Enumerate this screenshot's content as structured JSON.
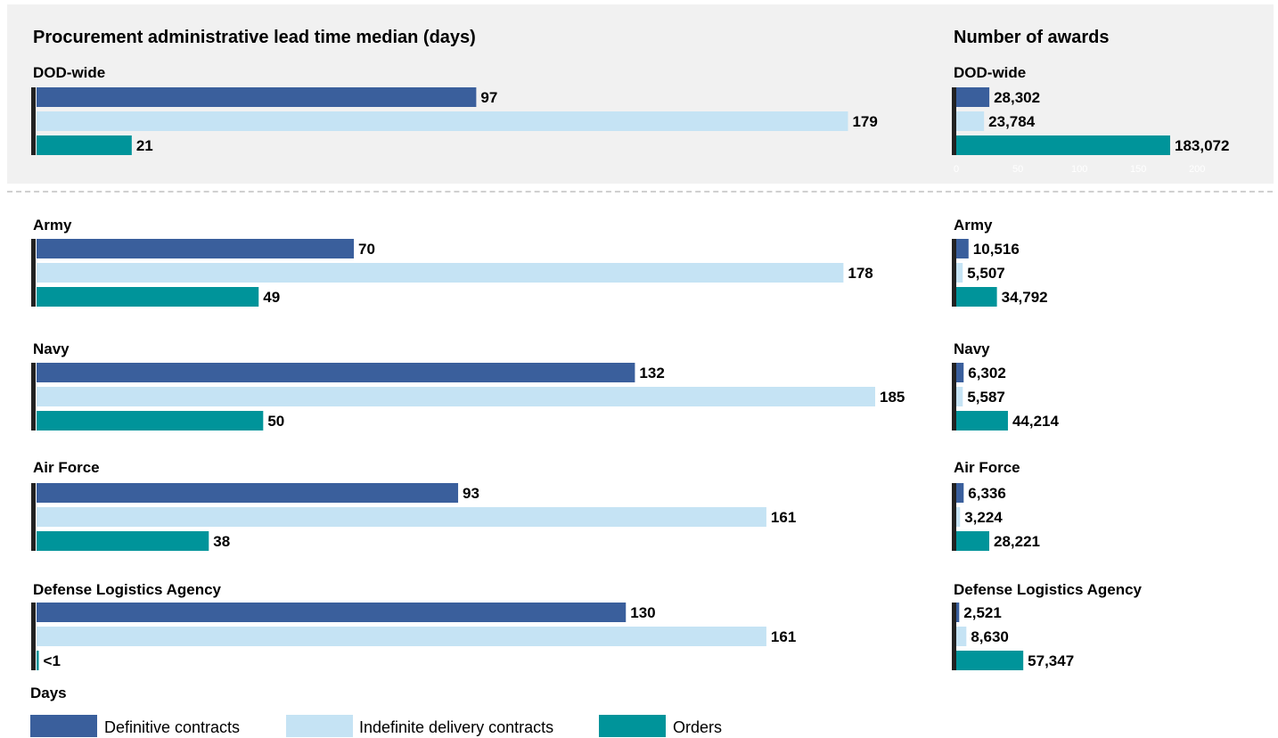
{
  "colors": {
    "definitive": "#3a5f9c",
    "indefinite": "#c5e3f4",
    "orders": "#00949a",
    "axis": "#222222",
    "panel": "#f1f1f1"
  },
  "chart_data": [
    {
      "type": "bar",
      "orientation": "horizontal",
      "title": "Procurement administrative lead time median (days)",
      "xlabel": "Days",
      "categories": [
        "DOD-wide",
        "Army",
        "Navy",
        "Air Force",
        "Defense Logistics Agency"
      ],
      "series": [
        {
          "name": "Definitive contracts",
          "values": [
            97,
            70,
            132,
            93,
            130
          ],
          "labels": [
            "97",
            "70",
            "132",
            "93",
            "130"
          ]
        },
        {
          "name": "Indefinite delivery contracts",
          "values": [
            179,
            178,
            185,
            161,
            161
          ],
          "labels": [
            "179",
            "178",
            "185",
            "161",
            "161"
          ]
        },
        {
          "name": "Orders",
          "values": [
            21,
            49,
            50,
            38,
            0.5
          ],
          "labels": [
            "21",
            "49",
            "50",
            "38",
            "<1"
          ]
        }
      ],
      "xlim": [
        0,
        185
      ]
    },
    {
      "type": "bar",
      "orientation": "horizontal",
      "title": "Number of awards",
      "categories": [
        "DOD-wide",
        "Army",
        "Navy",
        "Air Force",
        "Defense Logistics Agency"
      ],
      "series": [
        {
          "name": "Definitive contracts",
          "values": [
            28302,
            10516,
            6302,
            6336,
            2521
          ],
          "labels": [
            "28,302",
            "10,516",
            "6,302",
            "6,336",
            "2,521"
          ]
        },
        {
          "name": "Indefinite delivery contracts",
          "values": [
            23784,
            5507,
            5587,
            3224,
            8630
          ],
          "labels": [
            "23,784",
            "5,507",
            "5,587",
            "3,224",
            "8,630"
          ]
        },
        {
          "name": "Orders",
          "values": [
            183072,
            34792,
            44214,
            28221,
            57347
          ],
          "labels": [
            "183,072",
            "34,792",
            "44,214",
            "28,221",
            "57,347"
          ]
        }
      ],
      "xlim": [
        0,
        200000
      ],
      "ticks": [
        "0",
        "50",
        "100",
        "150",
        "200"
      ]
    }
  ]
}
